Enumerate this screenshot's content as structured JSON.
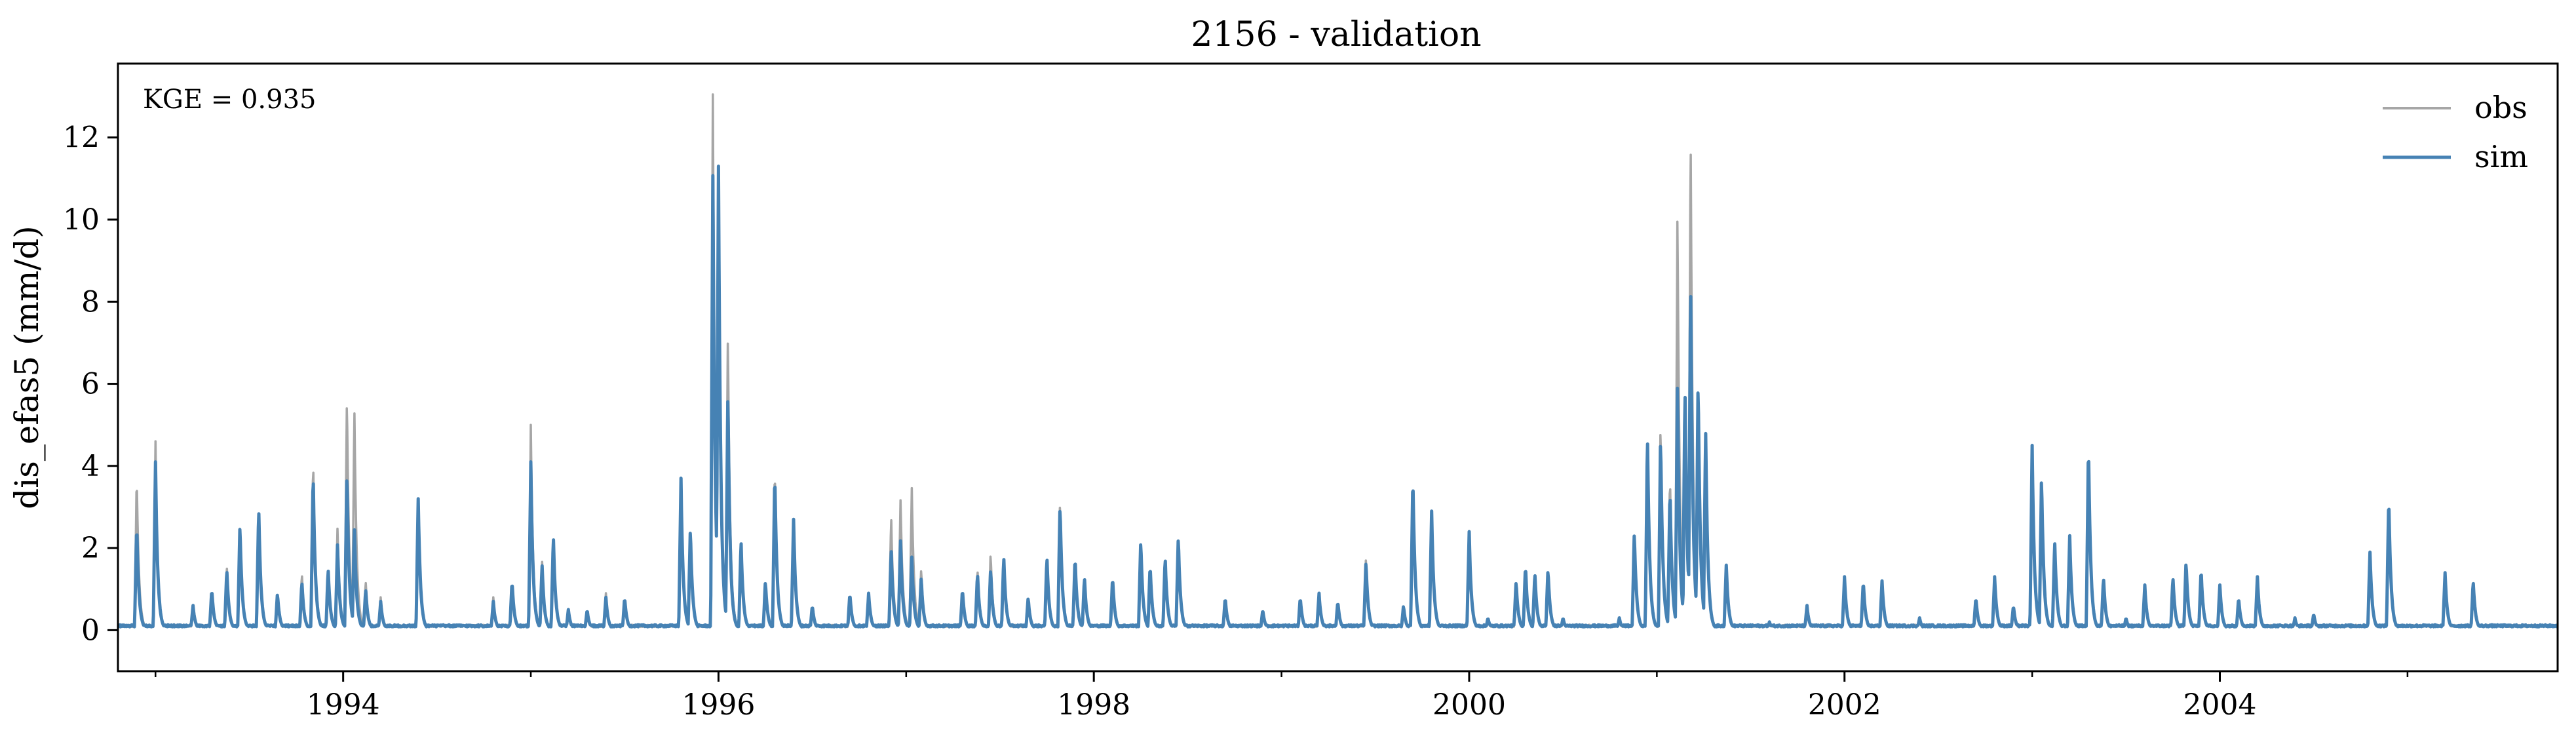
{
  "chart_data": {
    "type": "line",
    "title": "2156 - validation",
    "xlabel": "",
    "ylabel": "dis_efas5 (mm/d)",
    "annotation": "KGE = 0.935",
    "xlim": [
      1992.8,
      2005.8
    ],
    "ylim": [
      -1.0,
      13.8
    ],
    "x_ticks": [
      1994,
      1996,
      1998,
      2000,
      2002,
      2004
    ],
    "x_tick_labels": [
      "1994",
      "1996",
      "1998",
      "2000",
      "2002",
      "2004"
    ],
    "x_minor_ticks": [
      1993,
      1995,
      1997,
      1999,
      2001,
      2003,
      2005
    ],
    "y_ticks": [
      0,
      2,
      4,
      6,
      8,
      10,
      12
    ],
    "y_tick_labels": [
      "0",
      "2",
      "4",
      "6",
      "8",
      "10",
      "12"
    ],
    "grid": false,
    "legend_position": "top-right",
    "colors": {
      "obs": "#a6a6a6",
      "sim": "#4682b4"
    },
    "baseline": 0.08,
    "series": [
      {
        "name": "obs",
        "peaks": [
          [
            1992.9,
            3.8
          ],
          [
            1993.0,
            4.6
          ],
          [
            1993.2,
            0.6
          ],
          [
            1993.3,
            1.0
          ],
          [
            1993.38,
            1.6
          ],
          [
            1993.45,
            2.6
          ],
          [
            1993.55,
            3.0
          ],
          [
            1993.65,
            0.9
          ],
          [
            1993.78,
            1.4
          ],
          [
            1993.84,
            4.2
          ],
          [
            1993.92,
            1.5
          ],
          [
            1993.97,
            2.5
          ],
          [
            1994.02,
            5.8
          ],
          [
            1994.06,
            5.4
          ],
          [
            1994.12,
            1.2
          ],
          [
            1994.2,
            0.8
          ],
          [
            1994.4,
            3.2
          ],
          [
            1994.8,
            0.8
          ],
          [
            1994.9,
            1.2
          ],
          [
            1995.0,
            5.0
          ],
          [
            1995.06,
            1.7
          ],
          [
            1995.12,
            2.3
          ],
          [
            1995.2,
            0.5
          ],
          [
            1995.3,
            0.5
          ],
          [
            1995.4,
            0.9
          ],
          [
            1995.5,
            0.8
          ],
          [
            1995.8,
            3.7
          ],
          [
            1995.85,
            2.5
          ],
          [
            1995.97,
            13.2
          ],
          [
            1996.0,
            11.0
          ],
          [
            1996.05,
            7.4
          ],
          [
            1996.12,
            2.0
          ],
          [
            1996.25,
            1.2
          ],
          [
            1996.3,
            4.0
          ],
          [
            1996.4,
            2.7
          ],
          [
            1996.5,
            0.6
          ],
          [
            1996.7,
            0.9
          ],
          [
            1996.8,
            0.9
          ],
          [
            1996.92,
            2.8
          ],
          [
            1996.97,
            3.2
          ],
          [
            1997.03,
            3.5
          ],
          [
            1997.08,
            1.5
          ],
          [
            1997.3,
            1.0
          ],
          [
            1997.38,
            1.5
          ],
          [
            1997.45,
            1.9
          ],
          [
            1997.52,
            1.8
          ],
          [
            1997.65,
            0.8
          ],
          [
            1997.75,
            1.8
          ],
          [
            1997.82,
            3.2
          ],
          [
            1997.9,
            1.8
          ],
          [
            1997.95,
            1.3
          ],
          [
            1998.1,
            1.3
          ],
          [
            1998.25,
            2.2
          ],
          [
            1998.3,
            1.6
          ],
          [
            1998.38,
            1.8
          ],
          [
            1998.45,
            2.3
          ],
          [
            1998.7,
            0.8
          ],
          [
            1998.9,
            0.5
          ],
          [
            1999.1,
            0.8
          ],
          [
            1999.2,
            0.9
          ],
          [
            1999.3,
            0.7
          ],
          [
            1999.45,
            1.8
          ],
          [
            1999.65,
            0.6
          ],
          [
            1999.7,
            3.8
          ],
          [
            1999.8,
            2.9
          ],
          [
            2000.0,
            2.4
          ],
          [
            2000.1,
            0.3
          ],
          [
            2000.25,
            1.2
          ],
          [
            2000.3,
            1.6
          ],
          [
            2000.35,
            1.4
          ],
          [
            2000.42,
            1.5
          ],
          [
            2000.5,
            0.3
          ],
          [
            2000.8,
            0.3
          ],
          [
            2000.88,
            2.4
          ],
          [
            2000.95,
            4.8
          ],
          [
            2001.02,
            5.1
          ],
          [
            2001.07,
            3.8
          ],
          [
            2001.11,
            10.3
          ],
          [
            2001.15,
            6.0
          ],
          [
            2001.18,
            12.4
          ],
          [
            2001.22,
            6.2
          ],
          [
            2001.26,
            4.9
          ],
          [
            2001.37,
            1.6
          ],
          [
            2001.6,
            0.2
          ],
          [
            2001.8,
            0.6
          ],
          [
            2002.0,
            1.3
          ],
          [
            2002.1,
            1.2
          ],
          [
            2002.2,
            1.2
          ],
          [
            2002.4,
            0.3
          ],
          [
            2002.7,
            0.8
          ],
          [
            2002.8,
            1.3
          ],
          [
            2002.9,
            0.6
          ],
          [
            2003.0,
            4.5
          ],
          [
            2003.05,
            3.8
          ],
          [
            2003.12,
            2.2
          ],
          [
            2003.2,
            2.3
          ],
          [
            2003.3,
            4.6
          ],
          [
            2003.38,
            1.3
          ],
          [
            2003.5,
            0.3
          ],
          [
            2003.6,
            1.1
          ],
          [
            2003.75,
            1.3
          ],
          [
            2003.82,
            1.7
          ],
          [
            2003.9,
            1.5
          ],
          [
            2004.0,
            1.1
          ],
          [
            2004.1,
            0.8
          ],
          [
            2004.2,
            1.3
          ],
          [
            2004.4,
            0.3
          ],
          [
            2004.5,
            0.4
          ],
          [
            2004.8,
            1.9
          ],
          [
            2004.9,
            3.3
          ],
          [
            2005.2,
            1.4
          ],
          [
            2005.35,
            1.2
          ],
          [
            2005.5,
            0.1
          ]
        ]
      },
      {
        "name": "sim",
        "peaks": [
          [
            1992.9,
            2.6
          ],
          [
            1993.0,
            4.1
          ],
          [
            1993.2,
            0.6
          ],
          [
            1993.3,
            1.0
          ],
          [
            1993.38,
            1.5
          ],
          [
            1993.45,
            2.6
          ],
          [
            1993.55,
            3.0
          ],
          [
            1993.65,
            0.9
          ],
          [
            1993.78,
            1.2
          ],
          [
            1993.84,
            3.9
          ],
          [
            1993.92,
            1.5
          ],
          [
            1993.97,
            2.1
          ],
          [
            1994.02,
            3.9
          ],
          [
            1994.06,
            2.5
          ],
          [
            1994.12,
            1.0
          ],
          [
            1994.2,
            0.7
          ],
          [
            1994.4,
            3.2
          ],
          [
            1994.8,
            0.7
          ],
          [
            1994.9,
            1.2
          ],
          [
            1995.0,
            4.1
          ],
          [
            1995.06,
            1.6
          ],
          [
            1995.12,
            2.3
          ],
          [
            1995.2,
            0.5
          ],
          [
            1995.3,
            0.5
          ],
          [
            1995.4,
            0.8
          ],
          [
            1995.5,
            0.8
          ],
          [
            1995.8,
            3.7
          ],
          [
            1995.85,
            2.5
          ],
          [
            1995.97,
            11.2
          ],
          [
            1996.0,
            11.3
          ],
          [
            1996.05,
            5.9
          ],
          [
            1996.12,
            2.2
          ],
          [
            1996.25,
            1.2
          ],
          [
            1996.3,
            3.9
          ],
          [
            1996.4,
            2.7
          ],
          [
            1996.5,
            0.6
          ],
          [
            1996.7,
            0.9
          ],
          [
            1996.8,
            0.9
          ],
          [
            1996.92,
            2.0
          ],
          [
            1996.97,
            2.2
          ],
          [
            1997.03,
            1.8
          ],
          [
            1997.08,
            1.3
          ],
          [
            1997.3,
            1.0
          ],
          [
            1997.38,
            1.4
          ],
          [
            1997.45,
            1.5
          ],
          [
            1997.52,
            1.8
          ],
          [
            1997.65,
            0.8
          ],
          [
            1997.75,
            1.8
          ],
          [
            1997.82,
            3.1
          ],
          [
            1997.9,
            1.8
          ],
          [
            1997.95,
            1.3
          ],
          [
            1998.1,
            1.3
          ],
          [
            1998.25,
            2.2
          ],
          [
            1998.3,
            1.6
          ],
          [
            1998.38,
            1.8
          ],
          [
            1998.45,
            2.3
          ],
          [
            1998.7,
            0.8
          ],
          [
            1998.9,
            0.5
          ],
          [
            1999.1,
            0.8
          ],
          [
            1999.2,
            0.9
          ],
          [
            1999.3,
            0.7
          ],
          [
            1999.45,
            1.7
          ],
          [
            1999.65,
            0.6
          ],
          [
            1999.7,
            3.8
          ],
          [
            1999.8,
            2.9
          ],
          [
            2000.0,
            2.4
          ],
          [
            2000.1,
            0.3
          ],
          [
            2000.25,
            1.2
          ],
          [
            2000.3,
            1.6
          ],
          [
            2000.35,
            1.4
          ],
          [
            2000.42,
            1.5
          ],
          [
            2000.5,
            0.3
          ],
          [
            2000.8,
            0.3
          ],
          [
            2000.88,
            2.4
          ],
          [
            2000.95,
            4.8
          ],
          [
            2001.02,
            4.8
          ],
          [
            2001.07,
            3.5
          ],
          [
            2001.11,
            6.1
          ],
          [
            2001.15,
            6.0
          ],
          [
            2001.18,
            8.7
          ],
          [
            2001.22,
            6.2
          ],
          [
            2001.26,
            4.9
          ],
          [
            2001.37,
            1.6
          ],
          [
            2001.6,
            0.2
          ],
          [
            2001.8,
            0.6
          ],
          [
            2002.0,
            1.3
          ],
          [
            2002.1,
            1.2
          ],
          [
            2002.2,
            1.2
          ],
          [
            2002.4,
            0.3
          ],
          [
            2002.7,
            0.8
          ],
          [
            2002.8,
            1.3
          ],
          [
            2002.9,
            0.6
          ],
          [
            2003.0,
            4.5
          ],
          [
            2003.05,
            3.8
          ],
          [
            2003.12,
            2.2
          ],
          [
            2003.2,
            2.3
          ],
          [
            2003.3,
            4.6
          ],
          [
            2003.38,
            1.3
          ],
          [
            2003.5,
            0.3
          ],
          [
            2003.6,
            1.1
          ],
          [
            2003.75,
            1.3
          ],
          [
            2003.82,
            1.7
          ],
          [
            2003.9,
            1.5
          ],
          [
            2004.0,
            1.1
          ],
          [
            2004.1,
            0.8
          ],
          [
            2004.2,
            1.3
          ],
          [
            2004.4,
            0.3
          ],
          [
            2004.5,
            0.4
          ],
          [
            2004.8,
            1.9
          ],
          [
            2004.9,
            3.3
          ],
          [
            2005.2,
            1.4
          ],
          [
            2005.35,
            1.2
          ],
          [
            2005.5,
            0.1
          ]
        ]
      }
    ]
  }
}
